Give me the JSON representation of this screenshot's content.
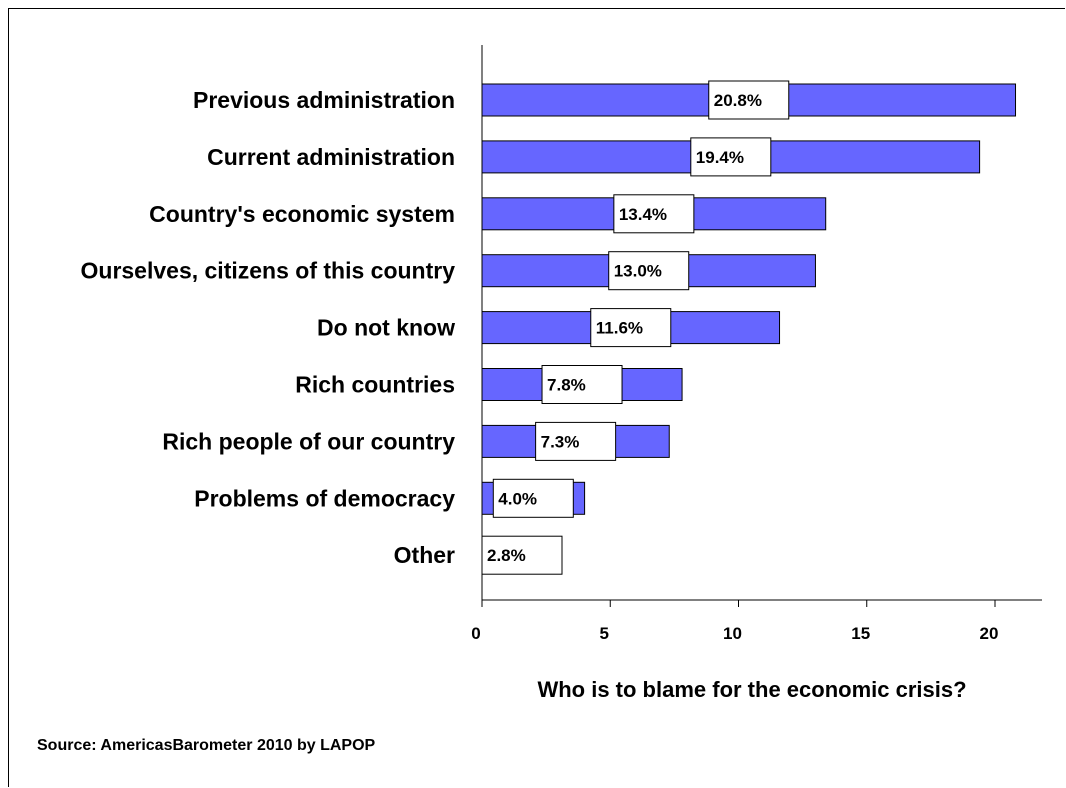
{
  "chart_data": {
    "type": "bar",
    "orientation": "horizontal",
    "categories": [
      "Previous administration",
      "Current administration",
      "Country's economic system",
      "Ourselves, citizens of this country",
      "Do not know",
      "Rich countries",
      "Rich people of our country",
      "Problems of democracy",
      "Other"
    ],
    "values": [
      20.8,
      19.4,
      13.4,
      13.0,
      11.6,
      7.8,
      7.3,
      4.0,
      2.8
    ],
    "data_labels": [
      "20.8%",
      "19.4%",
      "13.4%",
      "13.0%",
      "11.6%",
      "7.8%",
      "7.3%",
      "4.0%",
      "2.8%"
    ],
    "xlabel": "Who is to blame for the economic crisis?",
    "ylabel": "",
    "xlim": [
      0,
      21.8
    ],
    "xticks": [
      0,
      5,
      10,
      15,
      20
    ],
    "grid": false,
    "legend": "none",
    "bar_color": "#6666ff",
    "source": "Source: AmericasBarometer 2010 by  LAPOP"
  }
}
